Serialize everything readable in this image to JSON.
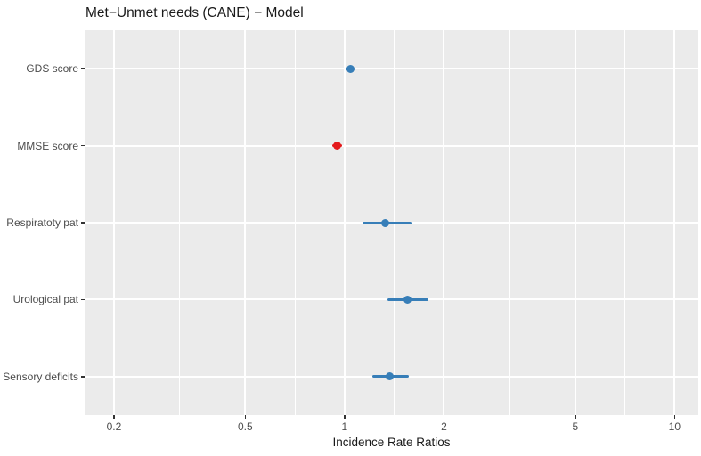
{
  "chart_data": {
    "type": "scatter",
    "subtype": "forest-plot-dot-whisker",
    "title": "Met−Unmet needs (CANE) − Model",
    "xlabel": "Incidence Rate Ratios",
    "ylabel": "",
    "x_scale": "log10",
    "xlim": [
      0.163,
      11.8
    ],
    "x_ticks": [
      0.2,
      0.5,
      1,
      2,
      5,
      10
    ],
    "x_tick_labels": [
      "0.2",
      "0.5",
      "1",
      "2",
      "5",
      "10"
    ],
    "x_minor_ticks": [
      0.3162,
      0.7071,
      1.4142,
      3.1623,
      7.0711
    ],
    "grid": "major-and-minor-vertical-white, major-horizontal-white-per-category",
    "legend": "none",
    "categories": [
      "GDS score",
      "MMSE score",
      "Respiratoty pat",
      "Urological pat",
      "Sensory deficits"
    ],
    "points": [
      {
        "label": "GDS score",
        "estimate": 1.04,
        "ci_low": 1.01,
        "ci_high": 1.07,
        "color_key": "positive"
      },
      {
        "label": "MMSE score",
        "estimate": 0.95,
        "ci_low": 0.92,
        "ci_high": 0.98,
        "color_key": "negative"
      },
      {
        "label": "Respiratoty pat",
        "estimate": 1.33,
        "ci_low": 1.13,
        "ci_high": 1.6,
        "color_key": "positive"
      },
      {
        "label": "Urological pat",
        "estimate": 1.55,
        "ci_low": 1.35,
        "ci_high": 1.8,
        "color_key": "positive"
      },
      {
        "label": "Sensory deficits",
        "estimate": 1.37,
        "ci_low": 1.21,
        "ci_high": 1.57,
        "color_key": "positive"
      }
    ],
    "colors": {
      "positive": "#377EB8",
      "negative": "#E41A1C",
      "panel_background": "#EBEBEB",
      "gridline": "#FFFFFF",
      "axis_text": "#4D4D4D",
      "title_text": "#1A1A1A",
      "tick_mark": "#333333"
    }
  }
}
